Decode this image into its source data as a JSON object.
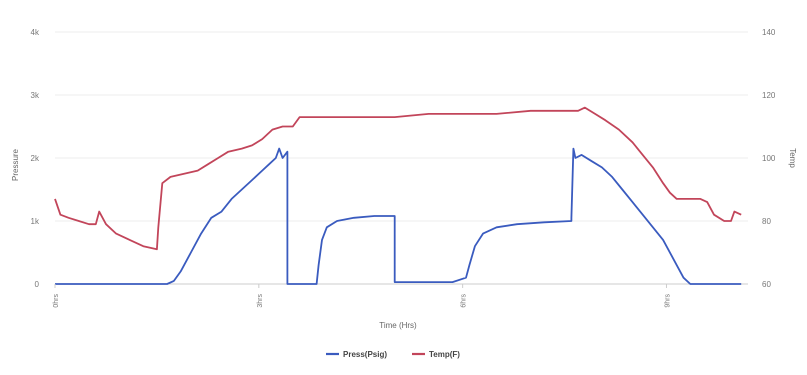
{
  "chart_data": {
    "type": "line",
    "xlabel": "Time (Hrs)",
    "ylabel_left": "Pressure",
    "ylabel_right": "Temp",
    "x_ticks": [
      "0hrs",
      "3hrs",
      "6hrs",
      "9hrs"
    ],
    "x_tick_values": [
      0,
      3,
      6,
      9
    ],
    "xlim": [
      0,
      10.2
    ],
    "ylim_left": [
      0,
      4000
    ],
    "ylim_right": [
      60,
      140
    ],
    "y_ticks_left": [
      "0",
      "1k",
      "2k",
      "3k",
      "4k"
    ],
    "y_ticks_right": [
      "60",
      "80",
      "100",
      "120",
      "140"
    ],
    "grid": true,
    "legend_position": "bottom",
    "series": [
      {
        "name": "Press(Psig)",
        "axis": "left",
        "color": "#3a5bbf",
        "points": [
          [
            0,
            0
          ],
          [
            1.65,
            0
          ],
          [
            1.75,
            50
          ],
          [
            1.85,
            200
          ],
          [
            2.0,
            500
          ],
          [
            2.15,
            800
          ],
          [
            2.3,
            1050
          ],
          [
            2.45,
            1150
          ],
          [
            2.6,
            1350
          ],
          [
            2.75,
            1500
          ],
          [
            2.9,
            1650
          ],
          [
            3.05,
            1800
          ],
          [
            3.15,
            1900
          ],
          [
            3.25,
            2000
          ],
          [
            3.3,
            2150
          ],
          [
            3.35,
            2000
          ],
          [
            3.42,
            2100
          ],
          [
            3.42,
            0
          ],
          [
            3.85,
            0
          ],
          [
            3.88,
            300
          ],
          [
            3.93,
            700
          ],
          [
            4.0,
            900
          ],
          [
            4.15,
            1000
          ],
          [
            4.4,
            1050
          ],
          [
            4.7,
            1080
          ],
          [
            5.0,
            1080
          ],
          [
            5.0,
            30
          ],
          [
            5.85,
            30
          ],
          [
            6.05,
            100
          ],
          [
            6.1,
            300
          ],
          [
            6.18,
            600
          ],
          [
            6.3,
            800
          ],
          [
            6.5,
            900
          ],
          [
            6.8,
            950
          ],
          [
            7.2,
            980
          ],
          [
            7.6,
            1000
          ],
          [
            7.6,
            1050
          ],
          [
            7.63,
            2150
          ],
          [
            7.66,
            2000
          ],
          [
            7.75,
            2050
          ],
          [
            7.9,
            1950
          ],
          [
            8.05,
            1850
          ],
          [
            8.2,
            1700
          ],
          [
            8.35,
            1500
          ],
          [
            8.5,
            1300
          ],
          [
            8.65,
            1100
          ],
          [
            8.8,
            900
          ],
          [
            8.95,
            700
          ],
          [
            9.1,
            400
          ],
          [
            9.25,
            100
          ],
          [
            9.35,
            0
          ],
          [
            10.1,
            0
          ]
        ]
      },
      {
        "name": "Temp(F)",
        "axis": "right",
        "color": "#c2455a",
        "points": [
          [
            0,
            87
          ],
          [
            0.08,
            82
          ],
          [
            0.2,
            81
          ],
          [
            0.35,
            80
          ],
          [
            0.5,
            79
          ],
          [
            0.6,
            79
          ],
          [
            0.65,
            83
          ],
          [
            0.75,
            79
          ],
          [
            0.9,
            76
          ],
          [
            1.1,
            74
          ],
          [
            1.3,
            72
          ],
          [
            1.5,
            71
          ],
          [
            1.52,
            78
          ],
          [
            1.58,
            92
          ],
          [
            1.7,
            94
          ],
          [
            1.9,
            95
          ],
          [
            2.1,
            96
          ],
          [
            2.25,
            98
          ],
          [
            2.4,
            100
          ],
          [
            2.55,
            102
          ],
          [
            2.75,
            103
          ],
          [
            2.9,
            104
          ],
          [
            3.05,
            106
          ],
          [
            3.2,
            109
          ],
          [
            3.35,
            110
          ],
          [
            3.5,
            110
          ],
          [
            3.6,
            113
          ],
          [
            3.9,
            113
          ],
          [
            4.5,
            113
          ],
          [
            5.0,
            113
          ],
          [
            5.5,
            114
          ],
          [
            6.0,
            114
          ],
          [
            6.5,
            114
          ],
          [
            7.0,
            115
          ],
          [
            7.5,
            115
          ],
          [
            7.7,
            115
          ],
          [
            7.8,
            116
          ],
          [
            7.95,
            114
          ],
          [
            8.1,
            112
          ],
          [
            8.3,
            109
          ],
          [
            8.5,
            105
          ],
          [
            8.65,
            101
          ],
          [
            8.8,
            97
          ],
          [
            8.95,
            92
          ],
          [
            9.05,
            89
          ],
          [
            9.15,
            87
          ],
          [
            9.3,
            87
          ],
          [
            9.5,
            87
          ],
          [
            9.6,
            86
          ],
          [
            9.7,
            82
          ],
          [
            9.85,
            80
          ],
          [
            9.95,
            80
          ],
          [
            10.0,
            83
          ],
          [
            10.1,
            82
          ]
        ]
      }
    ]
  }
}
